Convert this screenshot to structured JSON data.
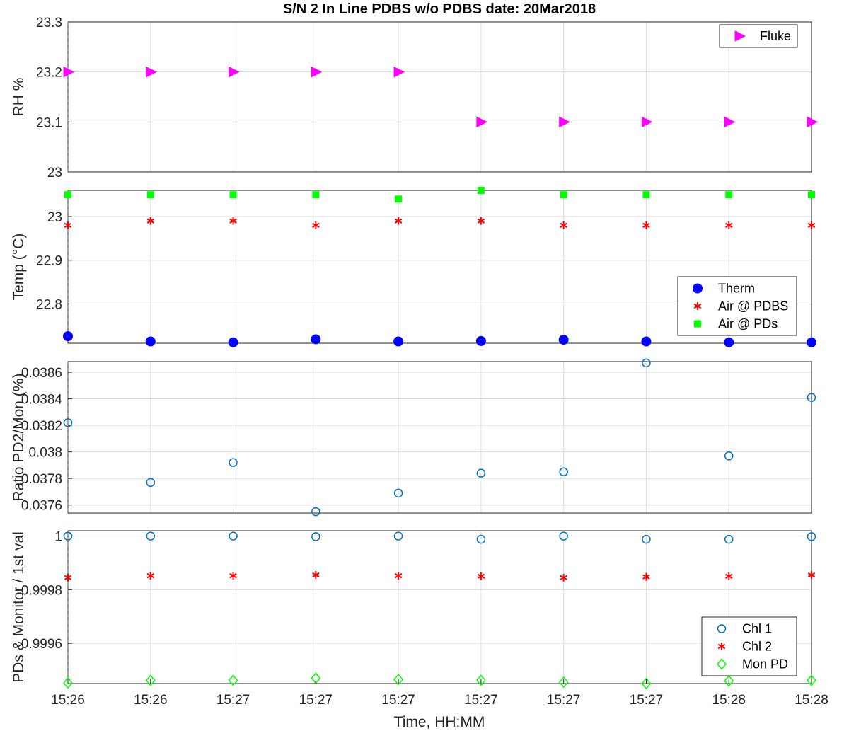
{
  "chart_data": {
    "type": "scatter",
    "title": "S/N 2 In Line PDBS w/o PDBS date: 20Mar2018",
    "xlabel": "Time, HH:MM",
    "x_tick_labels": [
      "15:26",
      "15:26",
      "15:27",
      "15:27",
      "15:27",
      "15:27",
      "15:27",
      "15:27",
      "15:28",
      "15:28"
    ],
    "panels": [
      {
        "ylabel": "RH %",
        "ylim": [
          23.0,
          23.3
        ],
        "yticks": [
          23,
          23.1,
          23.2,
          23.3
        ],
        "ytick_labels": [
          "23",
          "23.1",
          "23.2",
          "23.3"
        ],
        "grid": true,
        "legend_position": "top-right",
        "series": [
          {
            "name": "Fluke",
            "marker": "triangle-right",
            "color": "#ff00ff",
            "values": [
              23.2,
              23.2,
              23.2,
              23.2,
              23.2,
              23.1,
              23.1,
              23.1,
              23.1,
              23.1
            ]
          }
        ]
      },
      {
        "ylabel": "Temp (°C)",
        "ylim": [
          22.71,
          23.06
        ],
        "yticks": [
          22.8,
          22.9,
          23.0
        ],
        "ytick_labels": [
          "22.8",
          "22.9",
          "23"
        ],
        "grid": true,
        "legend_position": "bottom-right",
        "series": [
          {
            "name": "Therm",
            "marker": "filled-circle",
            "color": "#0000ff",
            "values": [
              22.726,
              22.714,
              22.712,
              22.719,
              22.714,
              22.715,
              22.718,
              22.714,
              22.712,
              22.712
            ]
          },
          {
            "name": "Air @ PDBS",
            "marker": "asterisk",
            "color": "#ff0000",
            "values": [
              22.98,
              22.99,
              22.99,
              22.98,
              22.99,
              22.99,
              22.98,
              22.98,
              22.98,
              22.98
            ]
          },
          {
            "name": "Air @ PDs",
            "marker": "filled-square",
            "color": "#00ff00",
            "values": [
              23.05,
              23.05,
              23.05,
              23.05,
              23.04,
              23.06,
              23.05,
              23.05,
              23.05,
              23.05
            ]
          }
        ]
      },
      {
        "ylabel": "Ratio PD2/Mon (%)",
        "ylim": [
          0.03754,
          0.03868
        ],
        "yticks": [
          0.0376,
          0.0378,
          0.038,
          0.0382,
          0.0384,
          0.0386
        ],
        "ytick_labels": [
          "0.0376",
          "0.0378",
          "0.038",
          "0.0382",
          "0.0384",
          "0.0386"
        ],
        "grid": true,
        "legend_position": "none",
        "series": [
          {
            "name": "",
            "marker": "open-circle",
            "color": "#0072bd",
            "values": [
              0.03822,
              0.03777,
              0.03792,
              0.03755,
              0.03769,
              0.03784,
              0.03785,
              0.03867,
              0.03797,
              0.03841
            ]
          }
        ]
      },
      {
        "ylabel": "PDs & Monitor / 1st val",
        "ylim": [
          0.99945,
          1.00002
        ],
        "yticks": [
          0.9996,
          0.9998,
          1.0
        ],
        "ytick_labels": [
          "0.9996",
          "0.9998",
          "1"
        ],
        "grid": true,
        "legend_position": "bottom-right",
        "series": [
          {
            "name": "Chl 1",
            "marker": "open-circle",
            "color": "#0072bd",
            "values": [
              1.0,
              1.0,
              1.0,
              0.999998,
              1.0,
              0.999988,
              1.0,
              0.999988,
              0.999988,
              0.999998
            ]
          },
          {
            "name": "Chl 2",
            "marker": "asterisk",
            "color": "#ff0000",
            "values": [
              0.999845,
              0.999852,
              0.999852,
              0.999855,
              0.999852,
              0.99985,
              0.999845,
              0.999848,
              0.99985,
              0.999855
            ]
          },
          {
            "name": "Mon PD",
            "marker": "open-diamond",
            "color": "#00ff00",
            "values": [
              0.999452,
              0.999462,
              0.999462,
              0.99947,
              0.999465,
              0.999462,
              0.999455,
              0.99945,
              0.99946,
              0.999462
            ]
          }
        ]
      }
    ]
  }
}
